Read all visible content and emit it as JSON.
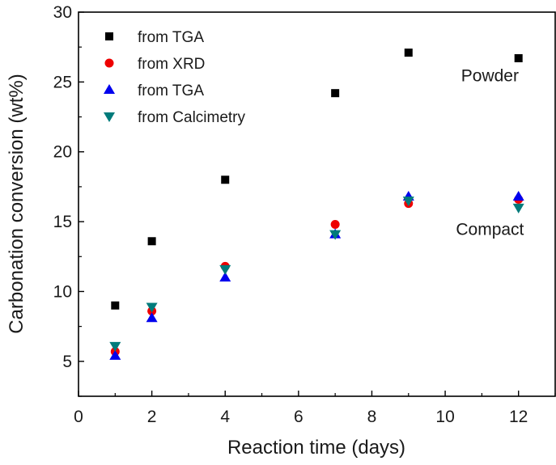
{
  "chart_data": {
    "type": "scatter",
    "title": "",
    "xlabel": "Reaction time (days)",
    "ylabel": "Carbonation conversion (wt%)",
    "xlim": [
      0,
      13
    ],
    "ylim": [
      2.5,
      30
    ],
    "xticks": [
      0,
      2,
      4,
      6,
      8,
      10,
      12
    ],
    "yticks": [
      5,
      10,
      15,
      20,
      25,
      30
    ],
    "legend_position": "top-left",
    "series": [
      {
        "name": "from TGA",
        "marker": "square",
        "color": "#000000",
        "x": [
          1,
          2,
          4,
          7,
          9,
          12
        ],
        "y": [
          9.0,
          13.6,
          18.0,
          24.2,
          27.1,
          26.7
        ]
      },
      {
        "name": "from XRD",
        "marker": "circle",
        "color": "#ee0000",
        "x": [
          1,
          2,
          4,
          7,
          9,
          12
        ],
        "y": [
          5.7,
          8.6,
          11.8,
          14.8,
          16.3,
          16.6
        ]
      },
      {
        "name": "from TGA",
        "marker": "triangle-up",
        "color": "#0000ee",
        "x": [
          1,
          2,
          4,
          7,
          9,
          12
        ],
        "y": [
          5.4,
          8.1,
          11.0,
          14.1,
          16.8,
          16.8
        ]
      },
      {
        "name": "from Calcimetry",
        "marker": "triangle-down",
        "color": "#007b7b",
        "x": [
          1,
          2,
          4,
          7,
          9,
          12
        ],
        "y": [
          6.1,
          8.9,
          11.6,
          14.1,
          16.5,
          16.0
        ]
      }
    ],
    "annotations": [
      {
        "text": "Powder",
        "x": 11.0,
        "y": 25.5
      },
      {
        "text": "Compact",
        "x": 11.0,
        "y": 14.5
      }
    ]
  }
}
